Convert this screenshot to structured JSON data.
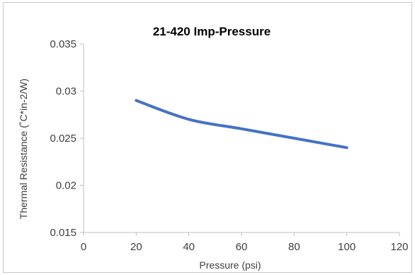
{
  "chart_data": {
    "type": "line",
    "title": "21-420 Imp-Pressure",
    "xlabel": "Pressure (psi)",
    "ylabel": "Thermal Resistance (˚C*in-2/W)",
    "xlim": [
      0,
      120
    ],
    "ylim": [
      0.015,
      0.035
    ],
    "x_ticks": [
      0,
      20,
      40,
      60,
      80,
      100,
      120
    ],
    "y_ticks": [
      0.015,
      0.02,
      0.025,
      0.03,
      0.035
    ],
    "x_tick_labels": [
      "0",
      "20",
      "40",
      "60",
      "80",
      "100",
      "120"
    ],
    "y_tick_labels": [
      "0.015",
      "0.02",
      "0.025",
      "0.03",
      "0.035"
    ],
    "grid": false,
    "legend": "none",
    "series": [
      {
        "color": "#4472c4",
        "x": [
          20,
          40,
          60,
          80,
          100
        ],
        "values": [
          0.029,
          0.027,
          0.026,
          0.025,
          0.024
        ]
      }
    ]
  }
}
